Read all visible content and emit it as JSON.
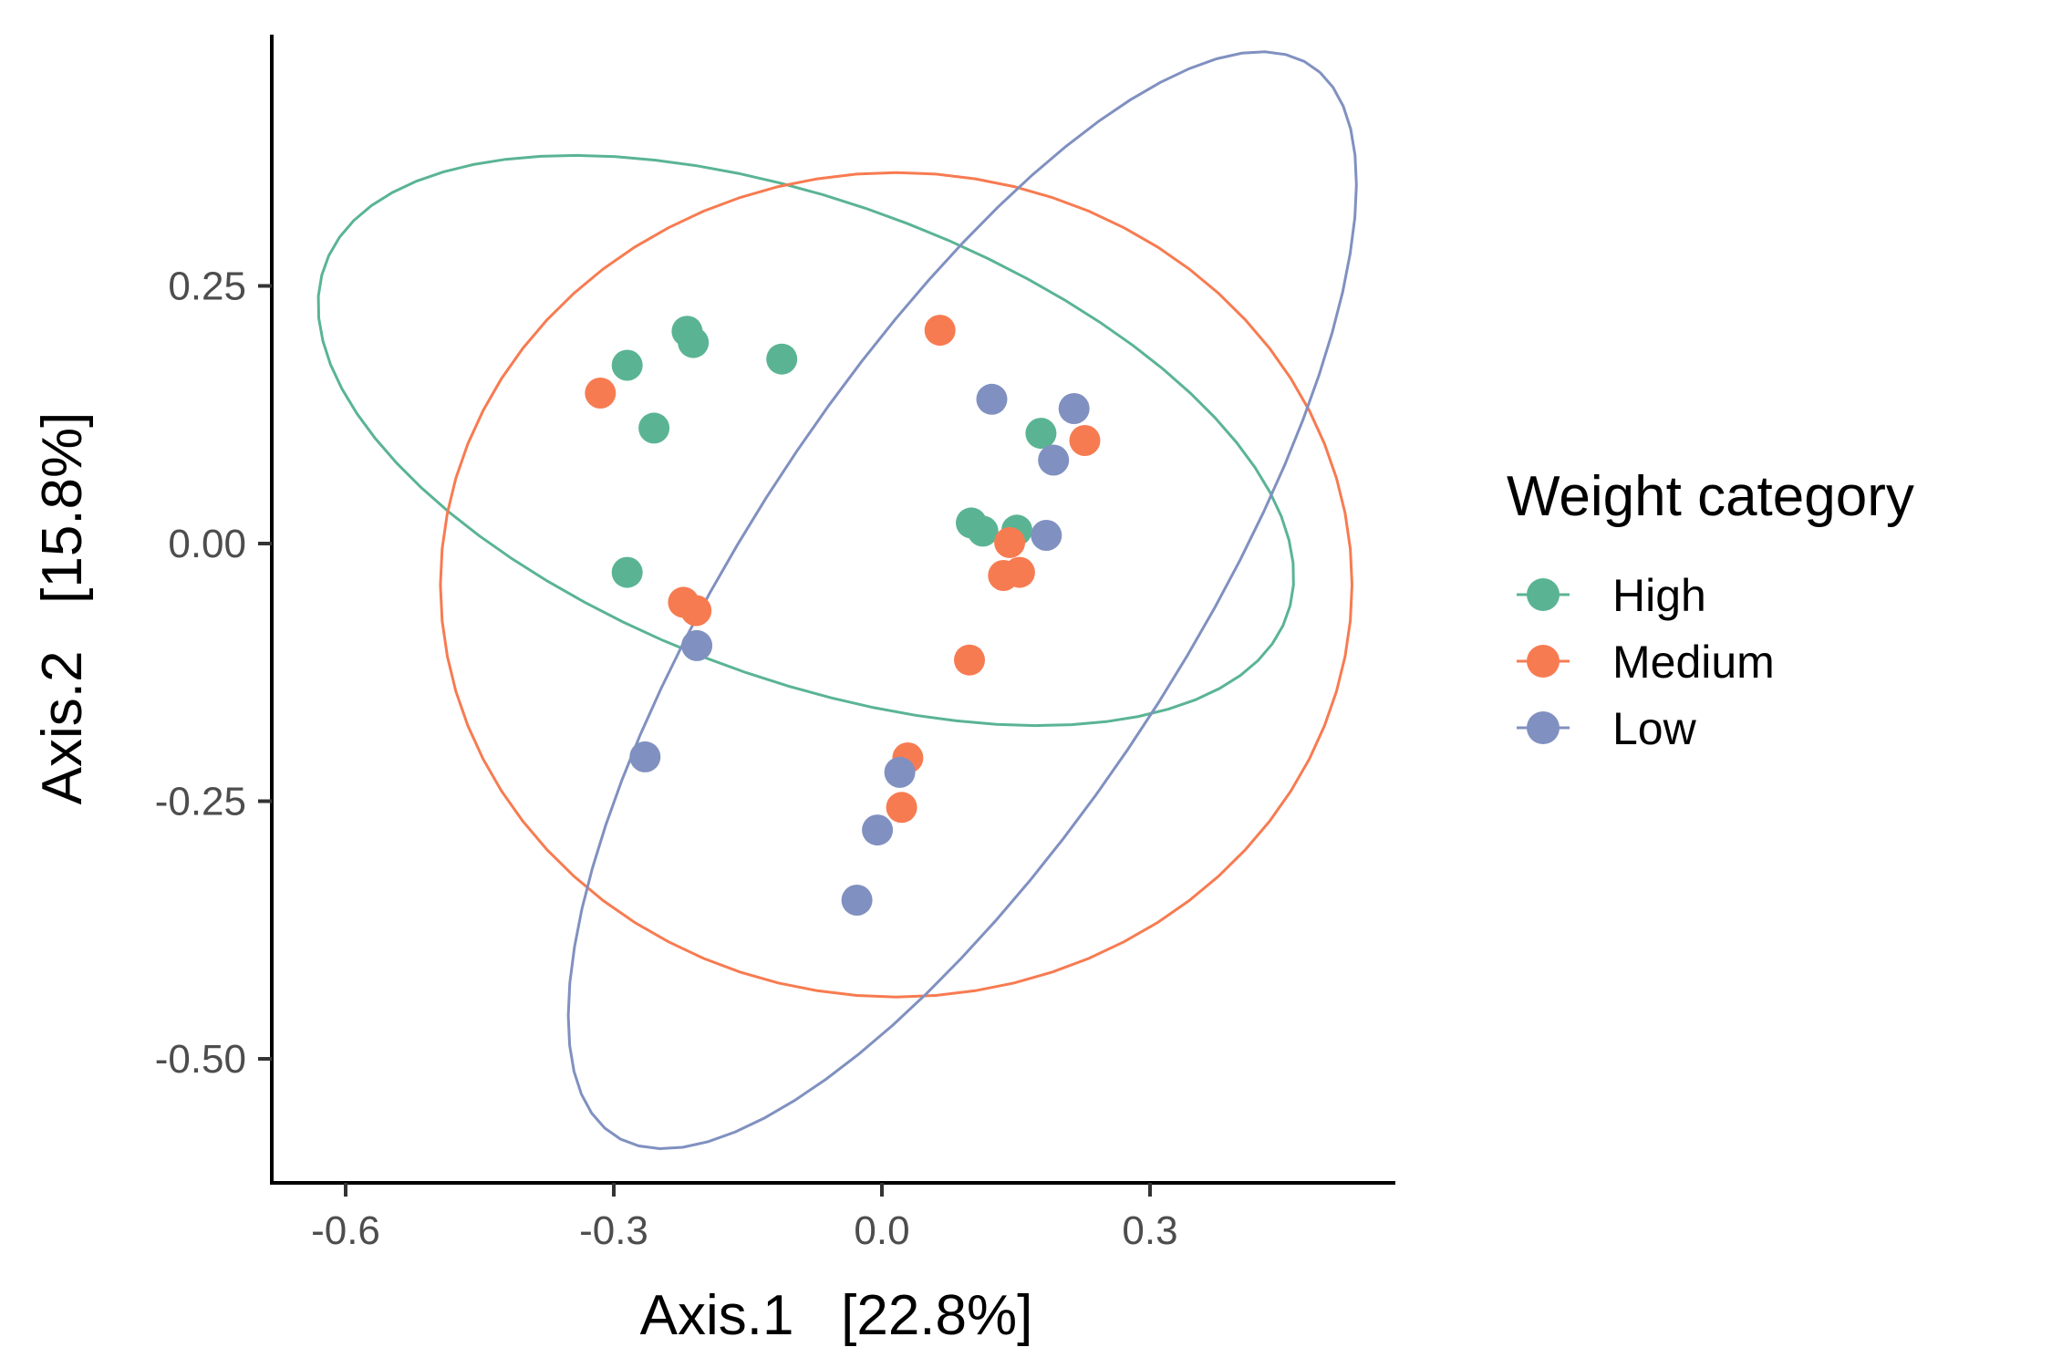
{
  "chart_data": {
    "type": "scatter",
    "xlabel": "Axis.1   [22.8%]",
    "ylabel": "Axis.2   [15.8%]",
    "xlim": [
      -0.68,
      0.58
    ],
    "ylim": [
      -0.62,
      0.49
    ],
    "x_ticks": [
      -0.6,
      -0.3,
      0.0,
      0.3
    ],
    "x_tick_labels": [
      "-0.6",
      "-0.3",
      "0.0",
      "0.3"
    ],
    "y_ticks": [
      0.25,
      0.0,
      -0.25,
      -0.5
    ],
    "y_tick_labels": [
      "0.25",
      "0.00",
      "-0.25",
      "-0.50"
    ],
    "grid": false,
    "legend": {
      "title": "Weight category",
      "position": "right",
      "entries": [
        "High",
        "Medium",
        "Low"
      ]
    },
    "series": [
      {
        "name": "High",
        "color": "#5ab494",
        "points": [
          [
            -0.218,
            0.206
          ],
          [
            -0.211,
            0.195
          ],
          [
            -0.112,
            0.179
          ],
          [
            -0.285,
            0.173
          ],
          [
            -0.255,
            0.112
          ],
          [
            -0.285,
            -0.028
          ],
          [
            0.1,
            0.02
          ],
          [
            0.113,
            0.012
          ],
          [
            0.151,
            0.013
          ],
          [
            0.178,
            0.107
          ]
        ],
        "ellipse": {
          "cx": -0.085,
          "cy": 0.1,
          "rx": 0.565,
          "ry": 0.235,
          "angle_deg": -16.5
        }
      },
      {
        "name": "Medium",
        "color": "#f77b51",
        "points": [
          [
            0.065,
            0.207
          ],
          [
            -0.315,
            0.146
          ],
          [
            0.227,
            0.1
          ],
          [
            0.143,
            0.001
          ],
          [
            0.136,
            -0.031
          ],
          [
            0.154,
            -0.028
          ],
          [
            -0.222,
            -0.057
          ],
          [
            -0.208,
            -0.065
          ],
          [
            0.098,
            -0.113
          ],
          [
            0.029,
            -0.208
          ],
          [
            0.022,
            -0.256
          ]
        ],
        "ellipse": {
          "cx": 0.016,
          "cy": -0.04,
          "rx": 0.51,
          "ry": 0.4,
          "angle_deg": 0
        }
      },
      {
        "name": "Low",
        "color": "#8090c0",
        "points": [
          [
            0.123,
            0.14
          ],
          [
            0.215,
            0.131
          ],
          [
            0.192,
            0.081
          ],
          [
            0.184,
            0.008
          ],
          [
            -0.207,
            -0.099
          ],
          [
            -0.265,
            -0.207
          ],
          [
            0.02,
            -0.222
          ],
          [
            -0.005,
            -0.278
          ],
          [
            -0.028,
            -0.346
          ]
        ],
        "ellipse": {
          "cx": 0.09,
          "cy": -0.055,
          "rx": 0.65,
          "ry": 0.235,
          "angle_deg": 52
        }
      }
    ]
  }
}
